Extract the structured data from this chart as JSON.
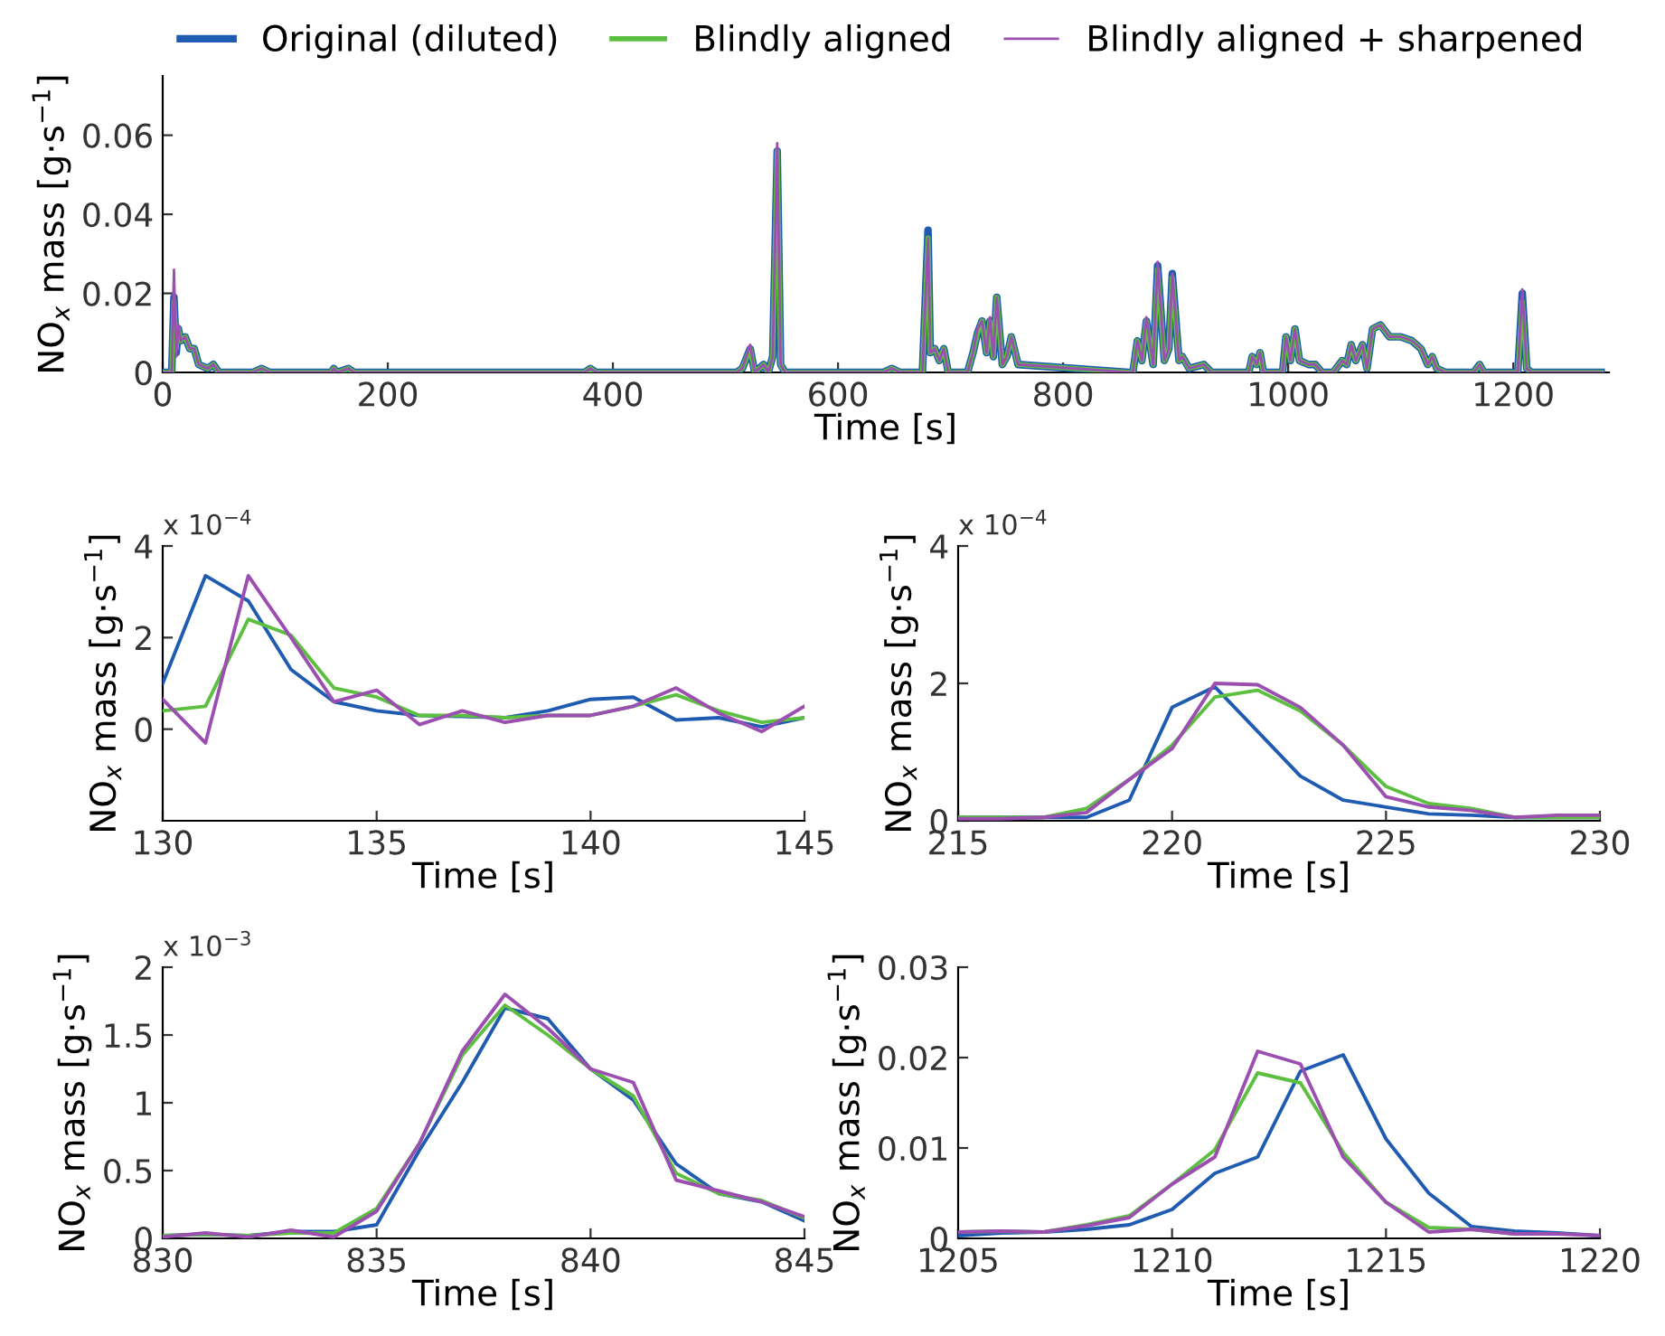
{
  "chart_data": [
    {
      "type": "line",
      "xlabel": "Time [s]",
      "ylabel": "NO$_{x}$ mass [g·s$^{−1}$]",
      "legend": "top",
      "xlim": [
        0,
        1285
      ],
      "xticks": [
        0,
        200,
        400,
        600,
        800,
        1000,
        1200
      ],
      "ylim": [
        0,
        0.075
      ],
      "yticks": [
        0,
        0.02,
        0.04,
        0.06
      ],
      "x": [
        0,
        8,
        10,
        12,
        14,
        16,
        20,
        24,
        28,
        32,
        40,
        45,
        50,
        80,
        88,
        95,
        150,
        152,
        155,
        165,
        170,
        375,
        380,
        385,
        510,
        515,
        522,
        526,
        534,
        538,
        542,
        546,
        549,
        553,
        640,
        648,
        655,
        675,
        680,
        682,
        686,
        690,
        694,
        698,
        715,
        720,
        724,
        728,
        732,
        735,
        738,
        741,
        746,
        750,
        754,
        760,
        858,
        862,
        866,
        870,
        874,
        880,
        884,
        890,
        894,
        897,
        903,
        906,
        912,
        925,
        932,
        965,
        968,
        972,
        975,
        978,
        995,
        998,
        1002,
        1006,
        1010,
        1018,
        1024,
        1030,
        1040,
        1048,
        1052,
        1056,
        1060,
        1066,
        1070,
        1075,
        1082,
        1090,
        1100,
        1110,
        1118,
        1124,
        1128,
        1132,
        1140,
        1165,
        1170,
        1174,
        1204,
        1208,
        1212,
        1216,
        1278
      ],
      "series": [
        {
          "name": "Original (diluted)",
          "color": "#1f5bb0",
          "values": [
            0,
            0,
            0.019,
            0.005,
            0.011,
            0.008,
            0.009,
            0.006,
            0.006,
            0.002,
            0.001,
            0.002,
            0,
            0,
            0.001,
            0,
            0,
            0.001,
            0,
            0.001,
            0,
            0,
            0.001,
            0,
            0,
            0.001,
            0.006,
            0,
            0.002,
            0,
            0.004,
            0.056,
            0.002,
            0,
            0,
            0.001,
            0,
            0,
            0.036,
            0.005,
            0.006,
            0.003,
            0.006,
            0,
            0,
            0.005,
            0.01,
            0.013,
            0.005,
            0.013,
            0.004,
            0.019,
            0.002,
            0.004,
            0.009,
            0.002,
            0,
            0,
            0.008,
            0.003,
            0.013,
            0.002,
            0.027,
            0.003,
            0.006,
            0.025,
            0.003,
            0.004,
            0.001,
            0.002,
            0,
            0,
            0.004,
            0.002,
            0.005,
            0,
            0,
            0.009,
            0.003,
            0.011,
            0.003,
            0.002,
            0.002,
            0,
            0,
            0.003,
            0.002,
            0.007,
            0.003,
            0.007,
            0.001,
            0.011,
            0.012,
            0.009,
            0.009,
            0.008,
            0.006,
            0.002,
            0.004,
            0.001,
            0,
            0,
            0.002,
            0,
            0,
            0.02,
            0.001,
            0,
            0
          ]
        },
        {
          "name": "Blindly aligned",
          "color": "#5cbf40",
          "values": [
            0,
            0,
            0.018,
            0.006,
            0.011,
            0.008,
            0.009,
            0.006,
            0.006,
            0.002,
            0.001,
            0.002,
            0,
            0,
            0.001,
            0,
            0,
            0.001,
            0,
            0.001,
            0,
            0,
            0.001,
            0,
            0,
            0.001,
            0.006,
            0,
            0.002,
            0,
            0.004,
            0.056,
            0.002,
            0,
            0,
            0.001,
            0,
            0,
            0.034,
            0.005,
            0.006,
            0.003,
            0.006,
            0,
            0,
            0.005,
            0.01,
            0.013,
            0.005,
            0.013,
            0.004,
            0.019,
            0.002,
            0.004,
            0.009,
            0.002,
            0,
            0,
            0.008,
            0.003,
            0.013,
            0.002,
            0.026,
            0.003,
            0.006,
            0.024,
            0.003,
            0.004,
            0.001,
            0.002,
            0,
            0,
            0.004,
            0.002,
            0.005,
            0,
            0,
            0.009,
            0.003,
            0.011,
            0.003,
            0.002,
            0.002,
            0,
            0,
            0.003,
            0.002,
            0.007,
            0.003,
            0.007,
            0.001,
            0.011,
            0.012,
            0.009,
            0.009,
            0.008,
            0.006,
            0.002,
            0.004,
            0.001,
            0,
            0,
            0.002,
            0,
            0,
            0.018,
            0.001,
            0,
            0
          ]
        },
        {
          "name": "Blindly aligned + sharpened",
          "color": "#9b4fb0",
          "values": [
            0,
            0,
            0.026,
            0.004,
            0.012,
            0.008,
            0.009,
            0.006,
            0.006,
            0.002,
            0.001,
            0.002,
            0,
            0,
            0.001,
            0,
            0,
            0.001,
            0,
            0.001,
            0,
            0,
            0.001,
            0,
            0,
            0.001,
            0.007,
            0,
            0.002,
            0,
            0.004,
            0.058,
            0.002,
            0,
            0,
            0.001,
            0,
            0,
            0.034,
            0.005,
            0.006,
            0.003,
            0.006,
            0,
            0,
            0.005,
            0.011,
            0.013,
            0.005,
            0.014,
            0.004,
            0.019,
            0.002,
            0.004,
            0.009,
            0.002,
            0,
            0,
            0.008,
            0.003,
            0.014,
            0.002,
            0.028,
            0.003,
            0.006,
            0.025,
            0.003,
            0.004,
            0.001,
            0.002,
            0,
            0,
            0.004,
            0.002,
            0.005,
            0,
            0,
            0.009,
            0.003,
            0.011,
            0.003,
            0.002,
            0.002,
            0,
            0,
            0.003,
            0.002,
            0.007,
            0.003,
            0.007,
            0.001,
            0.011,
            0.012,
            0.009,
            0.009,
            0.008,
            0.006,
            0.002,
            0.004,
            0.001,
            0,
            0,
            0.002,
            0,
            0,
            0.021,
            0.001,
            0,
            0
          ]
        }
      ]
    },
    {
      "type": "line",
      "xlabel": "Time [s]",
      "ylabel": "NO$_{x}$ mass [g·s$^{−1}$]",
      "annotations": [
        "x 10$^{−4}$"
      ],
      "xlim": [
        130,
        145
      ],
      "xticks": [
        130,
        135,
        140,
        145
      ],
      "ylim": [
        -2,
        4
      ],
      "yticks": [
        0,
        2,
        4
      ],
      "x": [
        130,
        131,
        132,
        133,
        134,
        135,
        136,
        137,
        138,
        139,
        140,
        141,
        142,
        143,
        144,
        145
      ],
      "series": [
        {
          "color": "#1f5bb0",
          "values": [
            1.0,
            3.35,
            2.8,
            1.3,
            0.6,
            0.4,
            0.3,
            0.28,
            0.25,
            0.4,
            0.65,
            0.7,
            0.2,
            0.25,
            0.05,
            0.25
          ]
        },
        {
          "color": "#5cbf40",
          "values": [
            0.4,
            0.5,
            2.4,
            2.05,
            0.9,
            0.7,
            0.3,
            0.3,
            0.25,
            0.3,
            0.3,
            0.5,
            0.75,
            0.4,
            0.15,
            0.25
          ]
        },
        {
          "color": "#9b4fb0",
          "values": [
            0.65,
            -0.3,
            3.35,
            2.0,
            0.6,
            0.85,
            0.1,
            0.4,
            0.15,
            0.3,
            0.3,
            0.5,
            0.9,
            0.35,
            -0.05,
            0.5
          ]
        }
      ]
    },
    {
      "type": "line",
      "xlabel": "Time [s]",
      "ylabel": "NO$_{x}$ mass [g·s$^{−1}$]",
      "annotations": [
        "x 10$^{−4}$"
      ],
      "xlim": [
        215,
        230
      ],
      "xticks": [
        215,
        220,
        225,
        230
      ],
      "ylim": [
        0,
        4
      ],
      "yticks": [
        0,
        2,
        4
      ],
      "x": [
        215,
        216,
        217,
        218,
        219,
        220,
        221,
        222,
        223,
        224,
        225,
        226,
        227,
        228,
        229,
        230
      ],
      "series": [
        {
          "color": "#1f5bb0",
          "values": [
            0.05,
            0.05,
            0.05,
            0.05,
            0.3,
            1.65,
            1.95,
            1.3,
            0.65,
            0.3,
            0.2,
            0.1,
            0.08,
            0.05,
            0.05,
            0.05
          ]
        },
        {
          "color": "#5cbf40",
          "values": [
            0.05,
            0.05,
            0.05,
            0.18,
            0.6,
            1.1,
            1.8,
            1.9,
            1.6,
            1.1,
            0.5,
            0.25,
            0.18,
            0.05,
            0.05,
            0.05
          ]
        },
        {
          "color": "#9b4fb0",
          "values": [
            0.03,
            0.03,
            0.05,
            0.12,
            0.6,
            1.05,
            2.0,
            1.98,
            1.65,
            1.1,
            0.35,
            0.2,
            0.15,
            0.05,
            0.08,
            0.08
          ]
        }
      ]
    },
    {
      "type": "line",
      "xlabel": "Time [s]",
      "ylabel": "NO$_{x}$ mass [g·s$^{−1}$]",
      "annotations": [
        "x 10$^{−3}$"
      ],
      "xlim": [
        830,
        845
      ],
      "xticks": [
        830,
        835,
        840,
        845
      ],
      "ylim": [
        0,
        2
      ],
      "yticks": [
        0,
        0.5,
        1,
        1.5,
        2
      ],
      "x": [
        830,
        831,
        832,
        833,
        834,
        835,
        836,
        837,
        838,
        839,
        840,
        841,
        842,
        843,
        844,
        845
      ],
      "series": [
        {
          "color": "#1f5bb0",
          "values": [
            0.02,
            0.03,
            0.02,
            0.05,
            0.05,
            0.1,
            0.65,
            1.15,
            1.7,
            1.62,
            1.25,
            1.02,
            0.55,
            0.33,
            0.27,
            0.13
          ]
        },
        {
          "color": "#5cbf40",
          "values": [
            0.02,
            0.03,
            0.02,
            0.04,
            0.04,
            0.22,
            0.7,
            1.35,
            1.72,
            1.5,
            1.25,
            1.05,
            0.48,
            0.33,
            0.28,
            0.15
          ]
        },
        {
          "color": "#9b4fb0",
          "values": [
            0.01,
            0.04,
            0.01,
            0.06,
            0.01,
            0.2,
            0.7,
            1.38,
            1.8,
            1.55,
            1.25,
            1.15,
            0.43,
            0.35,
            0.27,
            0.16
          ]
        }
      ]
    },
    {
      "type": "line",
      "xlabel": "Time [s]",
      "ylabel": "NO$_{x}$ mass [g·s$^{−1}$]",
      "xlim": [
        1205,
        1220
      ],
      "xticks": [
        1205,
        1210,
        1215,
        1220
      ],
      "ylim": [
        0,
        0.03
      ],
      "yticks": [
        0,
        0.01,
        0.02,
        0.03
      ],
      "x": [
        1205,
        1206,
        1207,
        1208,
        1209,
        1210,
        1211,
        1212,
        1213,
        1214,
        1215,
        1216,
        1217,
        1218,
        1219,
        1220
      ],
      "series": [
        {
          "color": "#1f5bb0",
          "values": [
            0.0003,
            0.0006,
            0.0007,
            0.001,
            0.0015,
            0.0032,
            0.0072,
            0.009,
            0.0185,
            0.0203,
            0.011,
            0.005,
            0.0013,
            0.0008,
            0.0006,
            0.0003
          ]
        },
        {
          "color": "#5cbf40",
          "values": [
            0.0007,
            0.0008,
            0.0007,
            0.0015,
            0.0025,
            0.006,
            0.0098,
            0.0183,
            0.0172,
            0.0095,
            0.004,
            0.0012,
            0.001,
            0.0005,
            null,
            null
          ]
        },
        {
          "color": "#9b4fb0",
          "values": [
            0.0007,
            0.0008,
            0.0007,
            0.0014,
            0.0023,
            0.006,
            0.009,
            0.0207,
            0.0193,
            0.009,
            0.004,
            0.0007,
            0.001,
            0.0005,
            0.0005,
            0.0003
          ]
        }
      ]
    }
  ]
}
